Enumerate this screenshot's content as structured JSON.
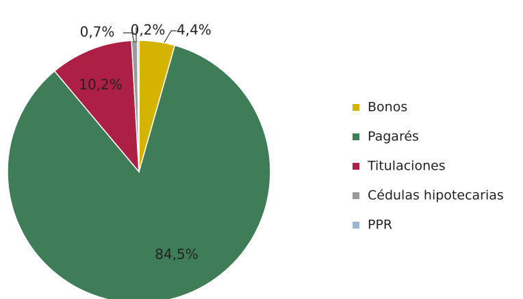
{
  "chart_data": {
    "type": "pie",
    "categories": [
      "Bonos",
      "Pagarés",
      "Titulaciones",
      "Cédulas hipotecarias",
      "PPR"
    ],
    "values": [
      4.4,
      84.5,
      10.2,
      0.7,
      0.2
    ],
    "value_labels": [
      "4,4%",
      "84,5%",
      "10,2%",
      "0,7%",
      "0,2%"
    ],
    "colors": [
      "#d4b400",
      "#3e7d58",
      "#ad1f45",
      "#9a9a9a",
      "#9cb6d6"
    ],
    "legend": "right"
  }
}
